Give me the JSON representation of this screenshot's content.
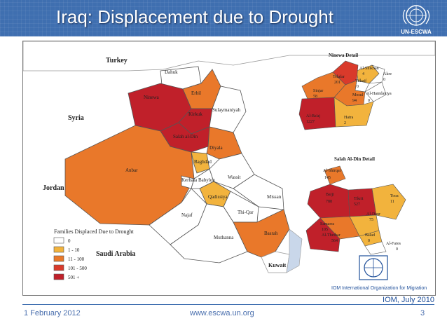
{
  "header": {
    "title": "Iraq: Displacement due to Drought",
    "logo_text": "UN-ESCWA"
  },
  "map": {
    "countries": {
      "turkey": "Turkey",
      "syria": "Syria",
      "jordan": "Jordan",
      "saudi": "Saudi Arabia",
      "kuwait": "Kuwait"
    },
    "provinces": {
      "dahuk": "Dahuk",
      "erbil": "Erbil",
      "ninewa": "Ninewa",
      "kirkuk": "Kirkuk",
      "sulaymaniyah": "Sulaymaniyah",
      "salahaldin": "Salah al-Din",
      "diyala": "Diyala",
      "anbar": "Anbar",
      "baghdad": "Baghdad",
      "kerbala": "Kerbala",
      "babylon": "Babylon",
      "wassit": "Wassit",
      "qadissiya": "Qadissiya",
      "missan": "Missan",
      "najaf": "Najaf",
      "thiqar": "Thi-Qar",
      "muthanna": "Muthanna",
      "basrah": "Basrah"
    },
    "legend": {
      "title": "Families Displaced Due to Drought",
      "items": [
        {
          "label": "0",
          "color": "#ffffff"
        },
        {
          "label": "1 - 10",
          "color": "#f2b33d"
        },
        {
          "label": "11 - 100",
          "color": "#e9782a"
        },
        {
          "label": "101 - 500",
          "color": "#d93a2b"
        },
        {
          "label": "501 +",
          "color": "#c0202a"
        }
      ]
    },
    "ninewa_detail": {
      "title": "Ninewa Detail",
      "districts": [
        {
          "name": "Al-Shikhan",
          "value": "4"
        },
        {
          "name": "Akre",
          "value": "0"
        },
        {
          "name": "Telafar",
          "value": "201"
        },
        {
          "name": "Tilkaif",
          "value": "0"
        },
        {
          "name": "Al-Hamdaniya",
          "value": "0"
        },
        {
          "name": "Sinjar",
          "value": "58"
        },
        {
          "name": "Mosul",
          "value": "94"
        },
        {
          "name": "Al-Ba'aj",
          "value": "1227"
        },
        {
          "name": "Hatra",
          "value": "2"
        }
      ]
    },
    "salah_detail": {
      "title": "Salah Al-Din Detail",
      "districts": [
        {
          "name": "Al-Shirqat",
          "value": "145"
        },
        {
          "name": "Baiji",
          "value": "788"
        },
        {
          "name": "Tikrit",
          "value": "527"
        },
        {
          "name": "Tooz",
          "value": "11"
        },
        {
          "name": "Al-Daur",
          "value": "75"
        },
        {
          "name": "Samarra",
          "value": "105"
        },
        {
          "name": "Al-Thethar",
          "value": "564"
        },
        {
          "name": "Balad",
          "value": "0"
        },
        {
          "name": "Al-Fares",
          "value": "0"
        }
      ]
    },
    "iom_caption": "IOM International Organization for Migration"
  },
  "source_note": "IOM, July 2010",
  "footer": {
    "date": "1 February 2012",
    "url": "www.escwa.un.org",
    "page": "3"
  }
}
